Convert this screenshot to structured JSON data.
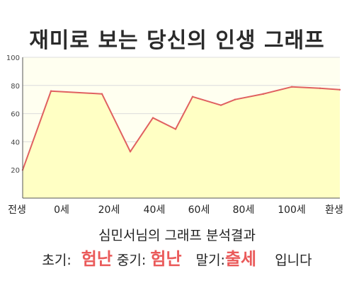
{
  "chart_data": {
    "type": "area",
    "title": "재미로 보는 당신의 인생 그래프",
    "x_labels": [
      "전생",
      "0세",
      "20세",
      "40세",
      "60세",
      "80세",
      "100세",
      "환생"
    ],
    "x": [
      -10,
      0,
      18,
      28,
      36,
      44,
      50,
      60,
      65,
      75,
      85,
      95,
      102
    ],
    "values": [
      20,
      76,
      74,
      33,
      57,
      49,
      72,
      66,
      70,
      74,
      79,
      78,
      77
    ],
    "ylim": [
      0,
      100
    ],
    "yticks": [
      20,
      40,
      60,
      80,
      100
    ],
    "grid": true,
    "colors": {
      "line": "#e06060",
      "fill": "#ffffc4",
      "plot_bg": "#fffff0",
      "grid": "#dcdcdc"
    }
  },
  "result": {
    "title": "심민서님의 그래프 분석결과",
    "early_label": "초기:",
    "early_value": "험난",
    "mid_label": "중기:",
    "mid_value": "험난",
    "late_label": "말기:",
    "late_value": "출세",
    "ending": "입니다"
  }
}
